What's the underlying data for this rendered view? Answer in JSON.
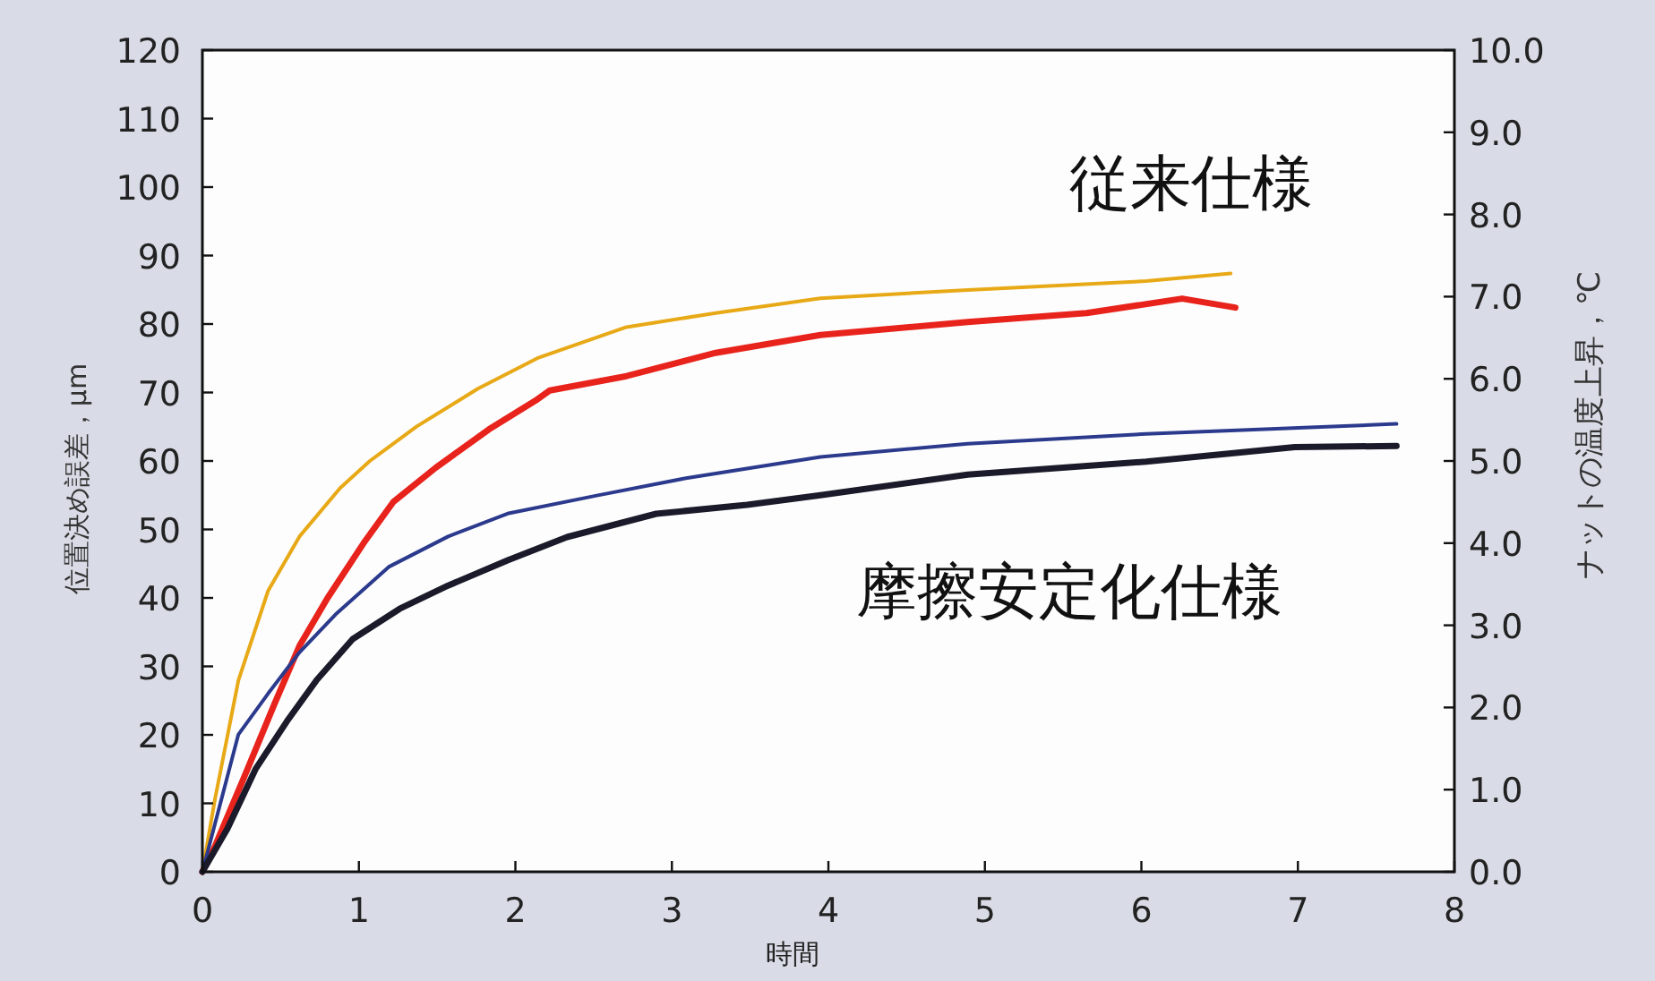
{
  "chart_data": {
    "type": "line",
    "xlabel": "時間",
    "ylabel": "位置決め誤差，μm",
    "y2label": "ナットの温度上昇，℃",
    "xlim": [
      0,
      8
    ],
    "xticks": [
      0,
      1,
      2,
      3,
      4,
      5,
      6,
      7,
      8
    ],
    "ylim": [
      0,
      120
    ],
    "yticks": [
      0,
      10,
      20,
      30,
      40,
      50,
      60,
      70,
      80,
      90,
      100,
      110,
      120
    ],
    "y2lim": [
      0,
      10
    ],
    "y2ticks": [
      {
        "value": 0,
        "label": "0.0"
      },
      {
        "value": 1,
        "label": "1.0"
      },
      {
        "value": 2,
        "label": "2.0"
      },
      {
        "value": 3,
        "label": "3.0"
      },
      {
        "value": 4,
        "label": "4.0"
      },
      {
        "value": 5,
        "label": "5.0"
      },
      {
        "value": 6,
        "label": "6.0"
      },
      {
        "value": 7,
        "label": "7.0"
      },
      {
        "value": 8,
        "label": "8.0"
      },
      {
        "value": 9,
        "label": "9.0"
      },
      {
        "value": 10,
        "label": "10.0"
      }
    ],
    "annotations": [
      "従来仕様",
      "摩擦安定化仕様"
    ],
    "series": [
      {
        "color": "#e8a917",
        "axis": "y2",
        "x": [
          0,
          0.08,
          0.23,
          0.42,
          0.62,
          0.88,
          1.07,
          1.37,
          1.76,
          2.14,
          2.71,
          3.28,
          3.95,
          4.89,
          6.03,
          6.57
        ],
        "values": [
          0,
          0.88,
          2.33,
          3.42,
          4.08,
          4.67,
          5.0,
          5.42,
          5.88,
          6.25,
          6.63,
          6.8,
          6.98,
          7.08,
          7.19,
          7.28
        ]
      },
      {
        "color": "#e8231c",
        "x": [
          0,
          0.08,
          0.27,
          0.46,
          0.62,
          0.8,
          1.03,
          1.22,
          1.49,
          1.83,
          2.14,
          2.22,
          2.71,
          3.28,
          3.95,
          4.89,
          5.65,
          6.26,
          6.6
        ],
        "values": [
          0,
          3.7,
          14,
          24.5,
          33,
          40,
          48,
          54,
          59,
          64.6,
          69,
          70.3,
          72.4,
          75.8,
          78.4,
          80.3,
          81.6,
          83.7,
          82.4
        ]
      },
      {
        "color": "#2b3a8c",
        "axis": "y2",
        "x": [
          0,
          0.23,
          0.42,
          0.62,
          0.85,
          1.19,
          1.57,
          1.95,
          2.52,
          3.09,
          3.95,
          4.89,
          6.03,
          7.63
        ],
        "values": [
          0,
          1.67,
          2.17,
          2.67,
          3.13,
          3.71,
          4.08,
          4.36,
          4.58,
          4.79,
          5.05,
          5.21,
          5.33,
          5.45
        ]
      },
      {
        "color": "#1a1a2a",
        "x": [
          0,
          0.16,
          0.34,
          0.54,
          0.73,
          0.96,
          1.26,
          1.57,
          1.95,
          2.33,
          2.9,
          3.48,
          3.95,
          4.89,
          6.03,
          6.98,
          7.63
        ],
        "values": [
          0,
          6.3,
          15,
          22,
          28,
          34,
          38.4,
          41.8,
          45.5,
          48.9,
          52.3,
          53.6,
          55,
          58,
          59.9,
          62,
          62.2
        ]
      }
    ]
  }
}
